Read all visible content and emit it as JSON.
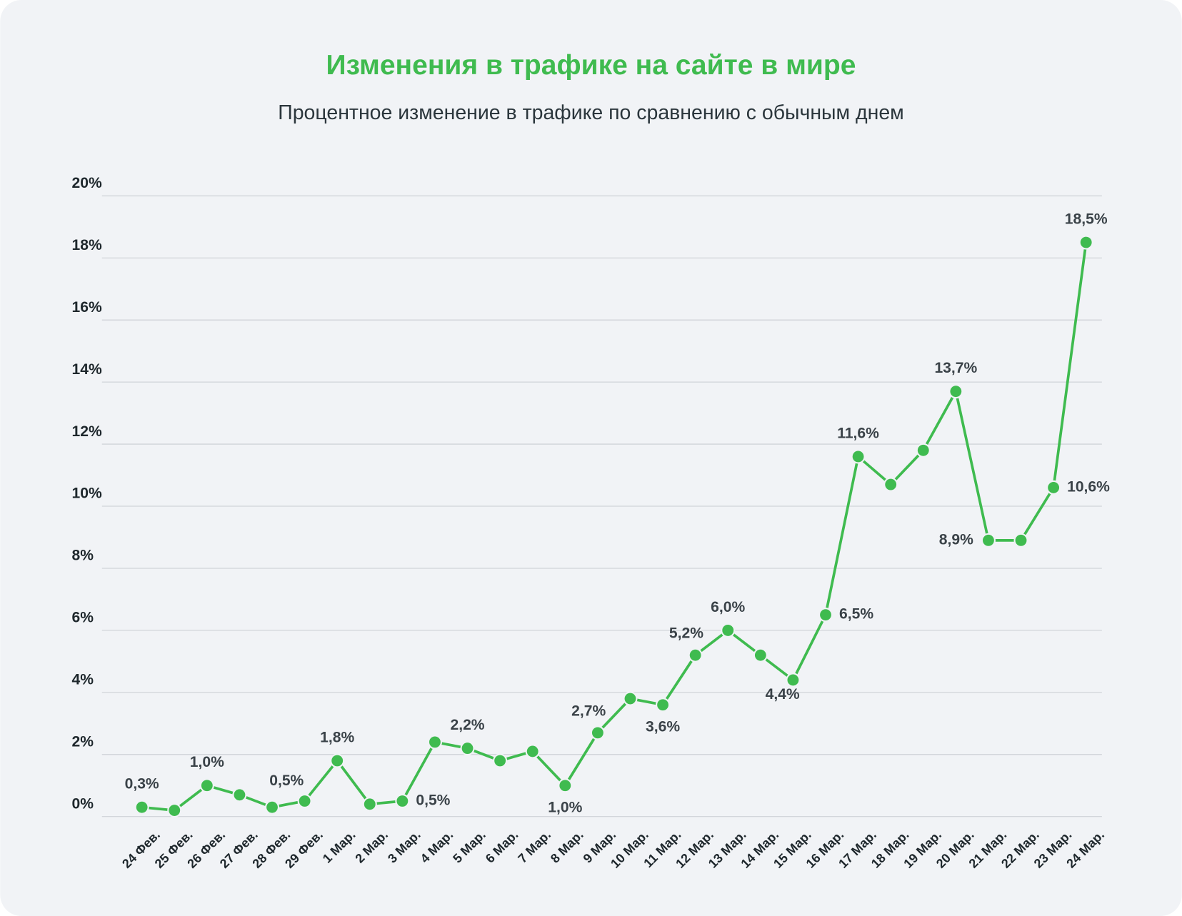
{
  "chart_data": {
    "type": "line",
    "title": "Изменения в трафике на сайте в мире",
    "subtitle": "Процентное изменение в трафике по сравнению с обычным днем",
    "categories": [
      "24 Фев.",
      "25 Фев.",
      "26 Фев.",
      "27 Фев.",
      "28 Фев.",
      "29 Фев.",
      "1 Мар.",
      "2 Мар.",
      "3 Мар.",
      "4 Мар.",
      "5 Мар.",
      "6 Мар.",
      "7 Мар.",
      "8 Мар.",
      "9 Мар.",
      "10 Мар.",
      "11 Мар.",
      "12 Мар.",
      "13 Мар.",
      "14 Мар.",
      "15 Мар.",
      "16 Мар.",
      "17 Мар.",
      "18 Мар.",
      "19 Мар.",
      "20 Мар.",
      "21 Мар.",
      "22 Мар.",
      "23 Мар.",
      "24 Мар."
    ],
    "series": [
      {
        "color": "#3fbb4f",
        "values": [
          0.3,
          0.2,
          1.0,
          0.7,
          0.3,
          0.5,
          1.8,
          0.4,
          0.5,
          2.4,
          2.2,
          1.8,
          2.1,
          1.0,
          2.7,
          3.8,
          3.6,
          5.2,
          6.0,
          5.2,
          4.4,
          6.5,
          11.6,
          10.7,
          11.8,
          13.7,
          8.9,
          8.9,
          10.6,
          18.5
        ],
        "value_labels": [
          "0,3%",
          null,
          "1,0%",
          null,
          null,
          "0,5%",
          "1,8%",
          null,
          "0,5%",
          null,
          "2,2%",
          null,
          null,
          "1,0%",
          "2,7%",
          null,
          "3,6%",
          "5,2%",
          "6,0%",
          null,
          "4,4%",
          "6,5%",
          "11,6%",
          null,
          null,
          "13,7%",
          "8,9%",
          null,
          "10,6%",
          "18,5%"
        ]
      }
    ],
    "ylim": [
      0,
      20
    ],
    "yticks": [
      {
        "value": 0,
        "label": "0%"
      },
      {
        "value": 2,
        "label": "2%"
      },
      {
        "value": 4,
        "label": "4%"
      },
      {
        "value": 6,
        "label": "6%"
      },
      {
        "value": 8,
        "label": "8%"
      },
      {
        "value": 10,
        "label": "10%"
      },
      {
        "value": 12,
        "label": "12%"
      },
      {
        "value": 14,
        "label": "14%"
      },
      {
        "value": 16,
        "label": "16%"
      },
      {
        "value": 18,
        "label": "18%"
      },
      {
        "value": 20,
        "label": "20%"
      }
    ],
    "grid": true
  }
}
